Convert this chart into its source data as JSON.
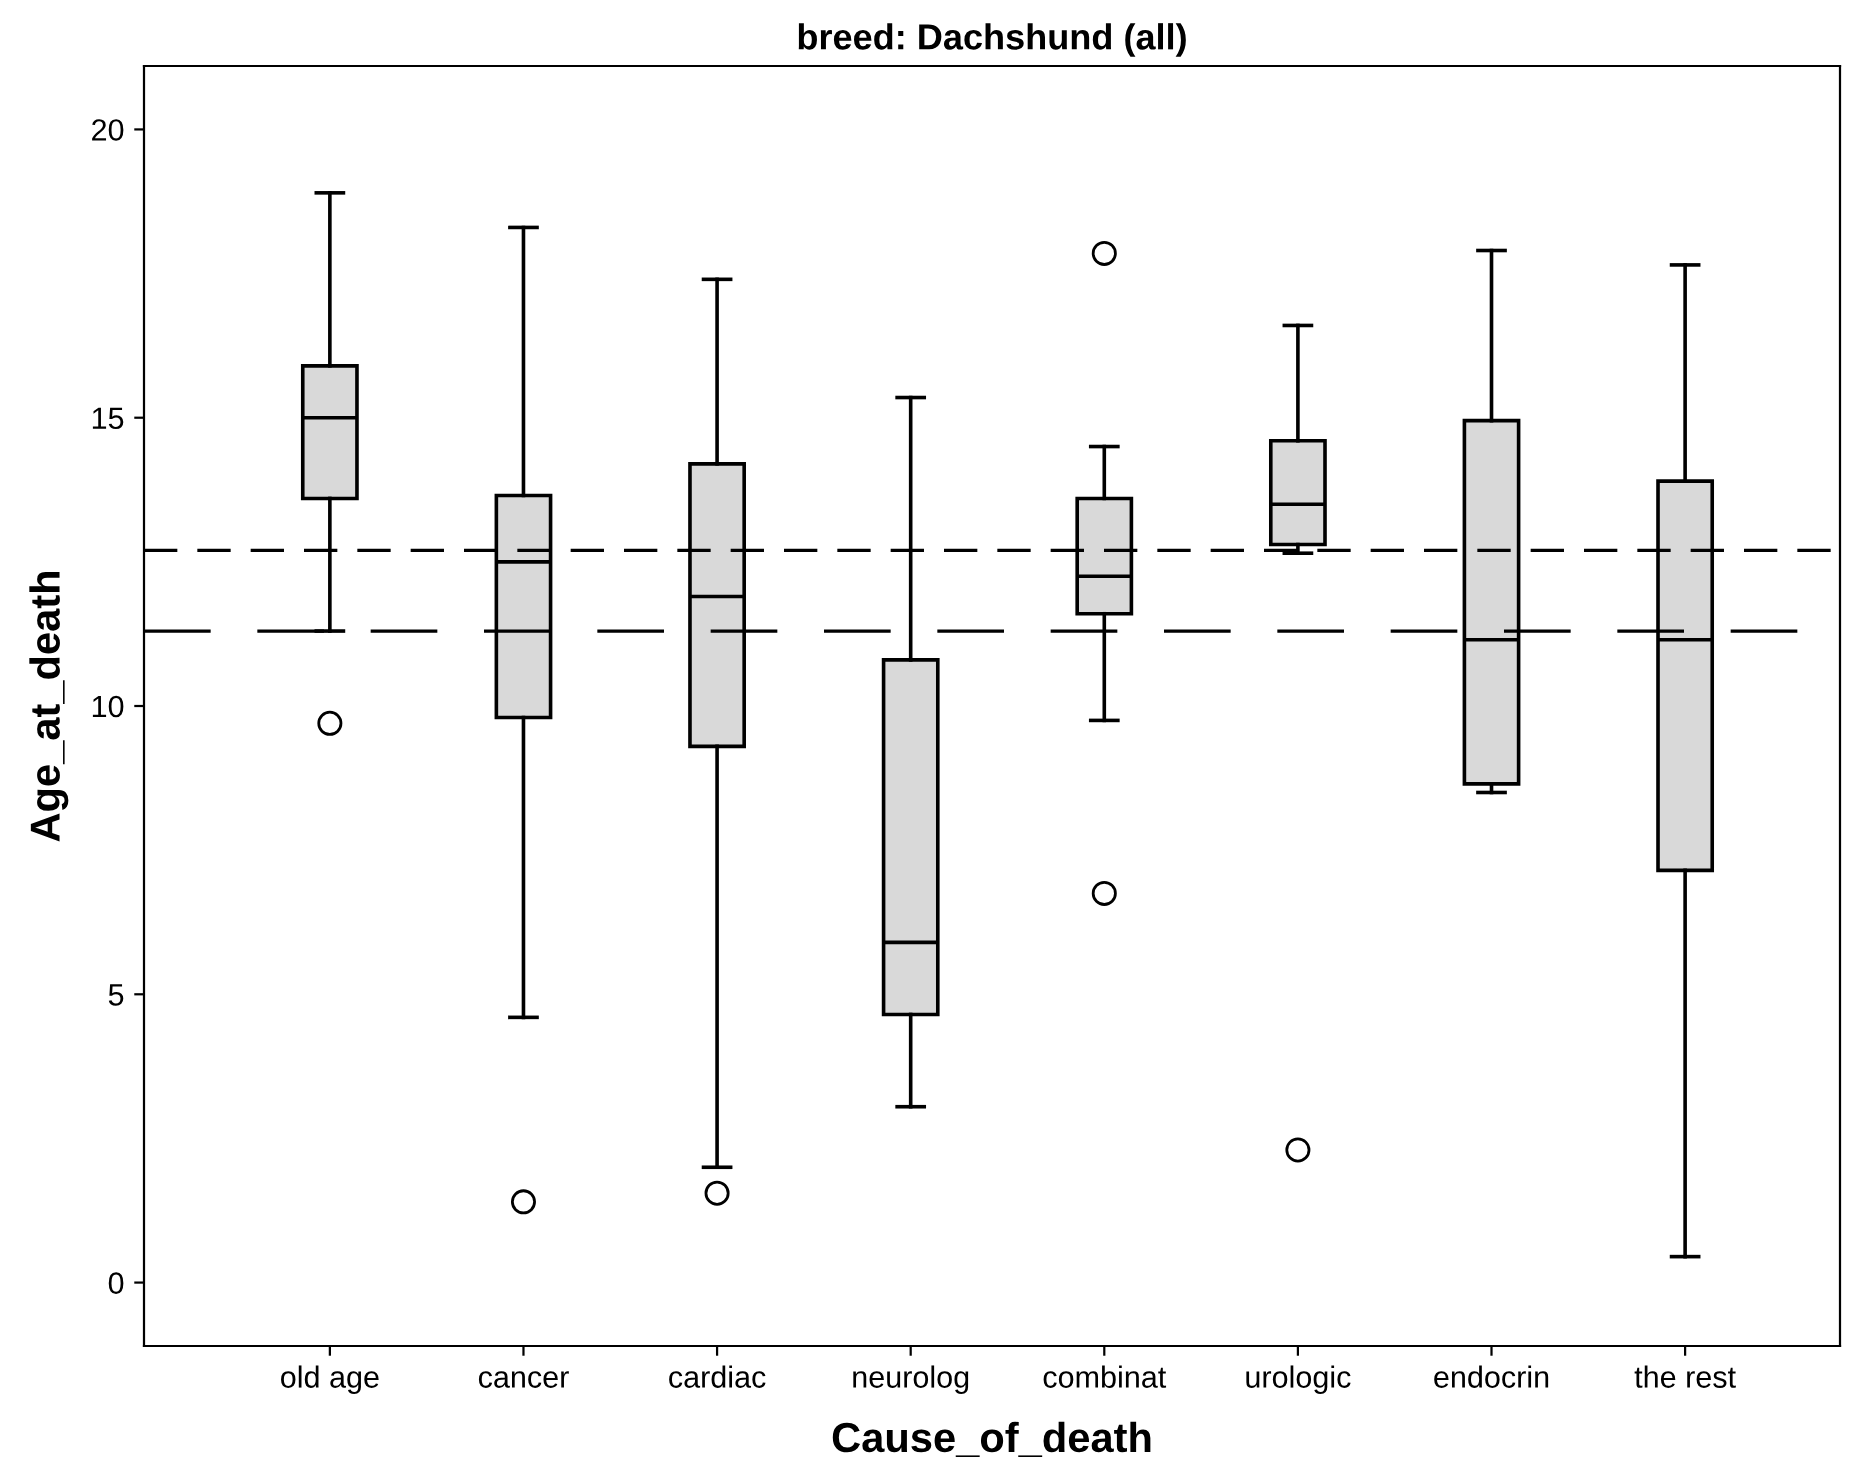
{
  "chart_data": {
    "type": "box",
    "title": "breed: Dachshund (all)",
    "xlabel": "Cause_of_death",
    "ylabel": "Age_at_death",
    "categories": [
      "old age",
      "cancer",
      "cardiac",
      "neurolog",
      "combinat",
      "urologic",
      "endocrin",
      "the rest"
    ],
    "color": "#d9d9d9",
    "boxes": [
      {
        "low": 11.3,
        "q1": 13.6,
        "median": 15.0,
        "q3": 15.9,
        "high": 18.9,
        "outliers": [
          9.7
        ]
      },
      {
        "low": 4.6,
        "q1": 9.8,
        "median": 12.5,
        "q3": 13.65,
        "high": 18.3,
        "outliers": [
          1.4
        ]
      },
      {
        "low": 2.0,
        "q1": 9.3,
        "median": 11.9,
        "q3": 14.2,
        "high": 17.4,
        "outliers": [
          1.55
        ]
      },
      {
        "low": 3.05,
        "q1": 4.65,
        "median": 5.9,
        "q3": 10.8,
        "high": 15.35
      },
      {
        "low": 9.75,
        "q1": 11.6,
        "median": 12.25,
        "q3": 13.6,
        "high": 14.5,
        "outliers": [
          17.85,
          6.75
        ]
      },
      {
        "low": 12.65,
        "q1": 12.8,
        "median": 13.5,
        "q3": 14.6,
        "high": 16.6,
        "outliers": [
          2.3
        ]
      },
      {
        "low": 8.5,
        "q1": 8.65,
        "median": 11.15,
        "q3": 14.95,
        "high": 17.9
      },
      {
        "low": 0.45,
        "q1": 7.15,
        "median": 11.15,
        "q3": 13.9,
        "high": 17.65
      }
    ],
    "ref_lines": [
      {
        "axis": "y",
        "value": 12.7,
        "line_style": "dashed",
        "color": "#000000"
      },
      {
        "axis": "y",
        "value": 11.3,
        "line_style": "longdash",
        "color": "#000000"
      }
    ],
    "ylim": [
      -1.1,
      21.1
    ],
    "yticks": [
      0,
      5,
      10,
      15,
      20
    ],
    "grid": false,
    "marker": "circle"
  }
}
